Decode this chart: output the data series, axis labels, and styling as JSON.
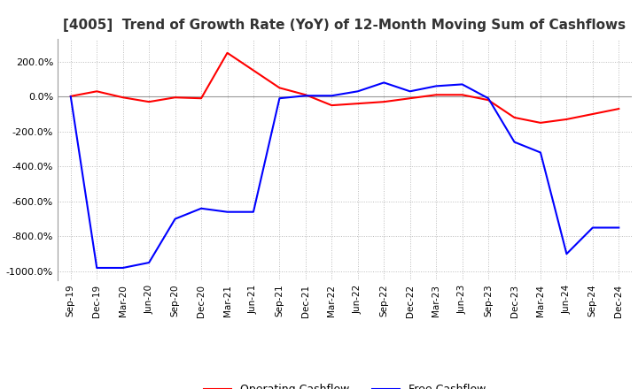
{
  "title": "[4005]  Trend of Growth Rate (YoY) of 12-Month Moving Sum of Cashflows",
  "title_fontsize": 11,
  "x_labels": [
    "Sep-19",
    "Dec-19",
    "Mar-20",
    "Jun-20",
    "Sep-20",
    "Dec-20",
    "Mar-21",
    "Jun-21",
    "Sep-21",
    "Dec-21",
    "Mar-22",
    "Jun-22",
    "Sep-22",
    "Dec-22",
    "Mar-23",
    "Jun-23",
    "Sep-23",
    "Dec-23",
    "Mar-24",
    "Jun-24",
    "Sep-24",
    "Dec-24"
  ],
  "operating_cashflow": [
    2.0,
    30.0,
    -5.0,
    -30.0,
    -5.0,
    -10.0,
    250.0,
    150.0,
    50.0,
    10.0,
    -50.0,
    -40.0,
    -30.0,
    -10.0,
    10.0,
    10.0,
    -20.0,
    -120.0,
    -150.0,
    -130.0,
    -100.0,
    -70.0
  ],
  "free_cashflow": [
    0.0,
    -980.0,
    -980.0,
    -950.0,
    -700.0,
    -640.0,
    -660.0,
    -660.0,
    -10.0,
    5.0,
    5.0,
    30.0,
    80.0,
    30.0,
    60.0,
    70.0,
    -10.0,
    -260.0,
    -320.0,
    -900.0,
    -750.0,
    -750.0
  ],
  "operating_color": "#FF0000",
  "free_color": "#0000FF",
  "background_color": "#FFFFFF",
  "plot_bg_color": "#FFFFFF",
  "grid_color": "#BBBBBB",
  "ylim": [
    -1050,
    330
  ],
  "yticks": [
    200.0,
    0.0,
    -200.0,
    -400.0,
    -600.0,
    -800.0,
    -1000.0
  ]
}
